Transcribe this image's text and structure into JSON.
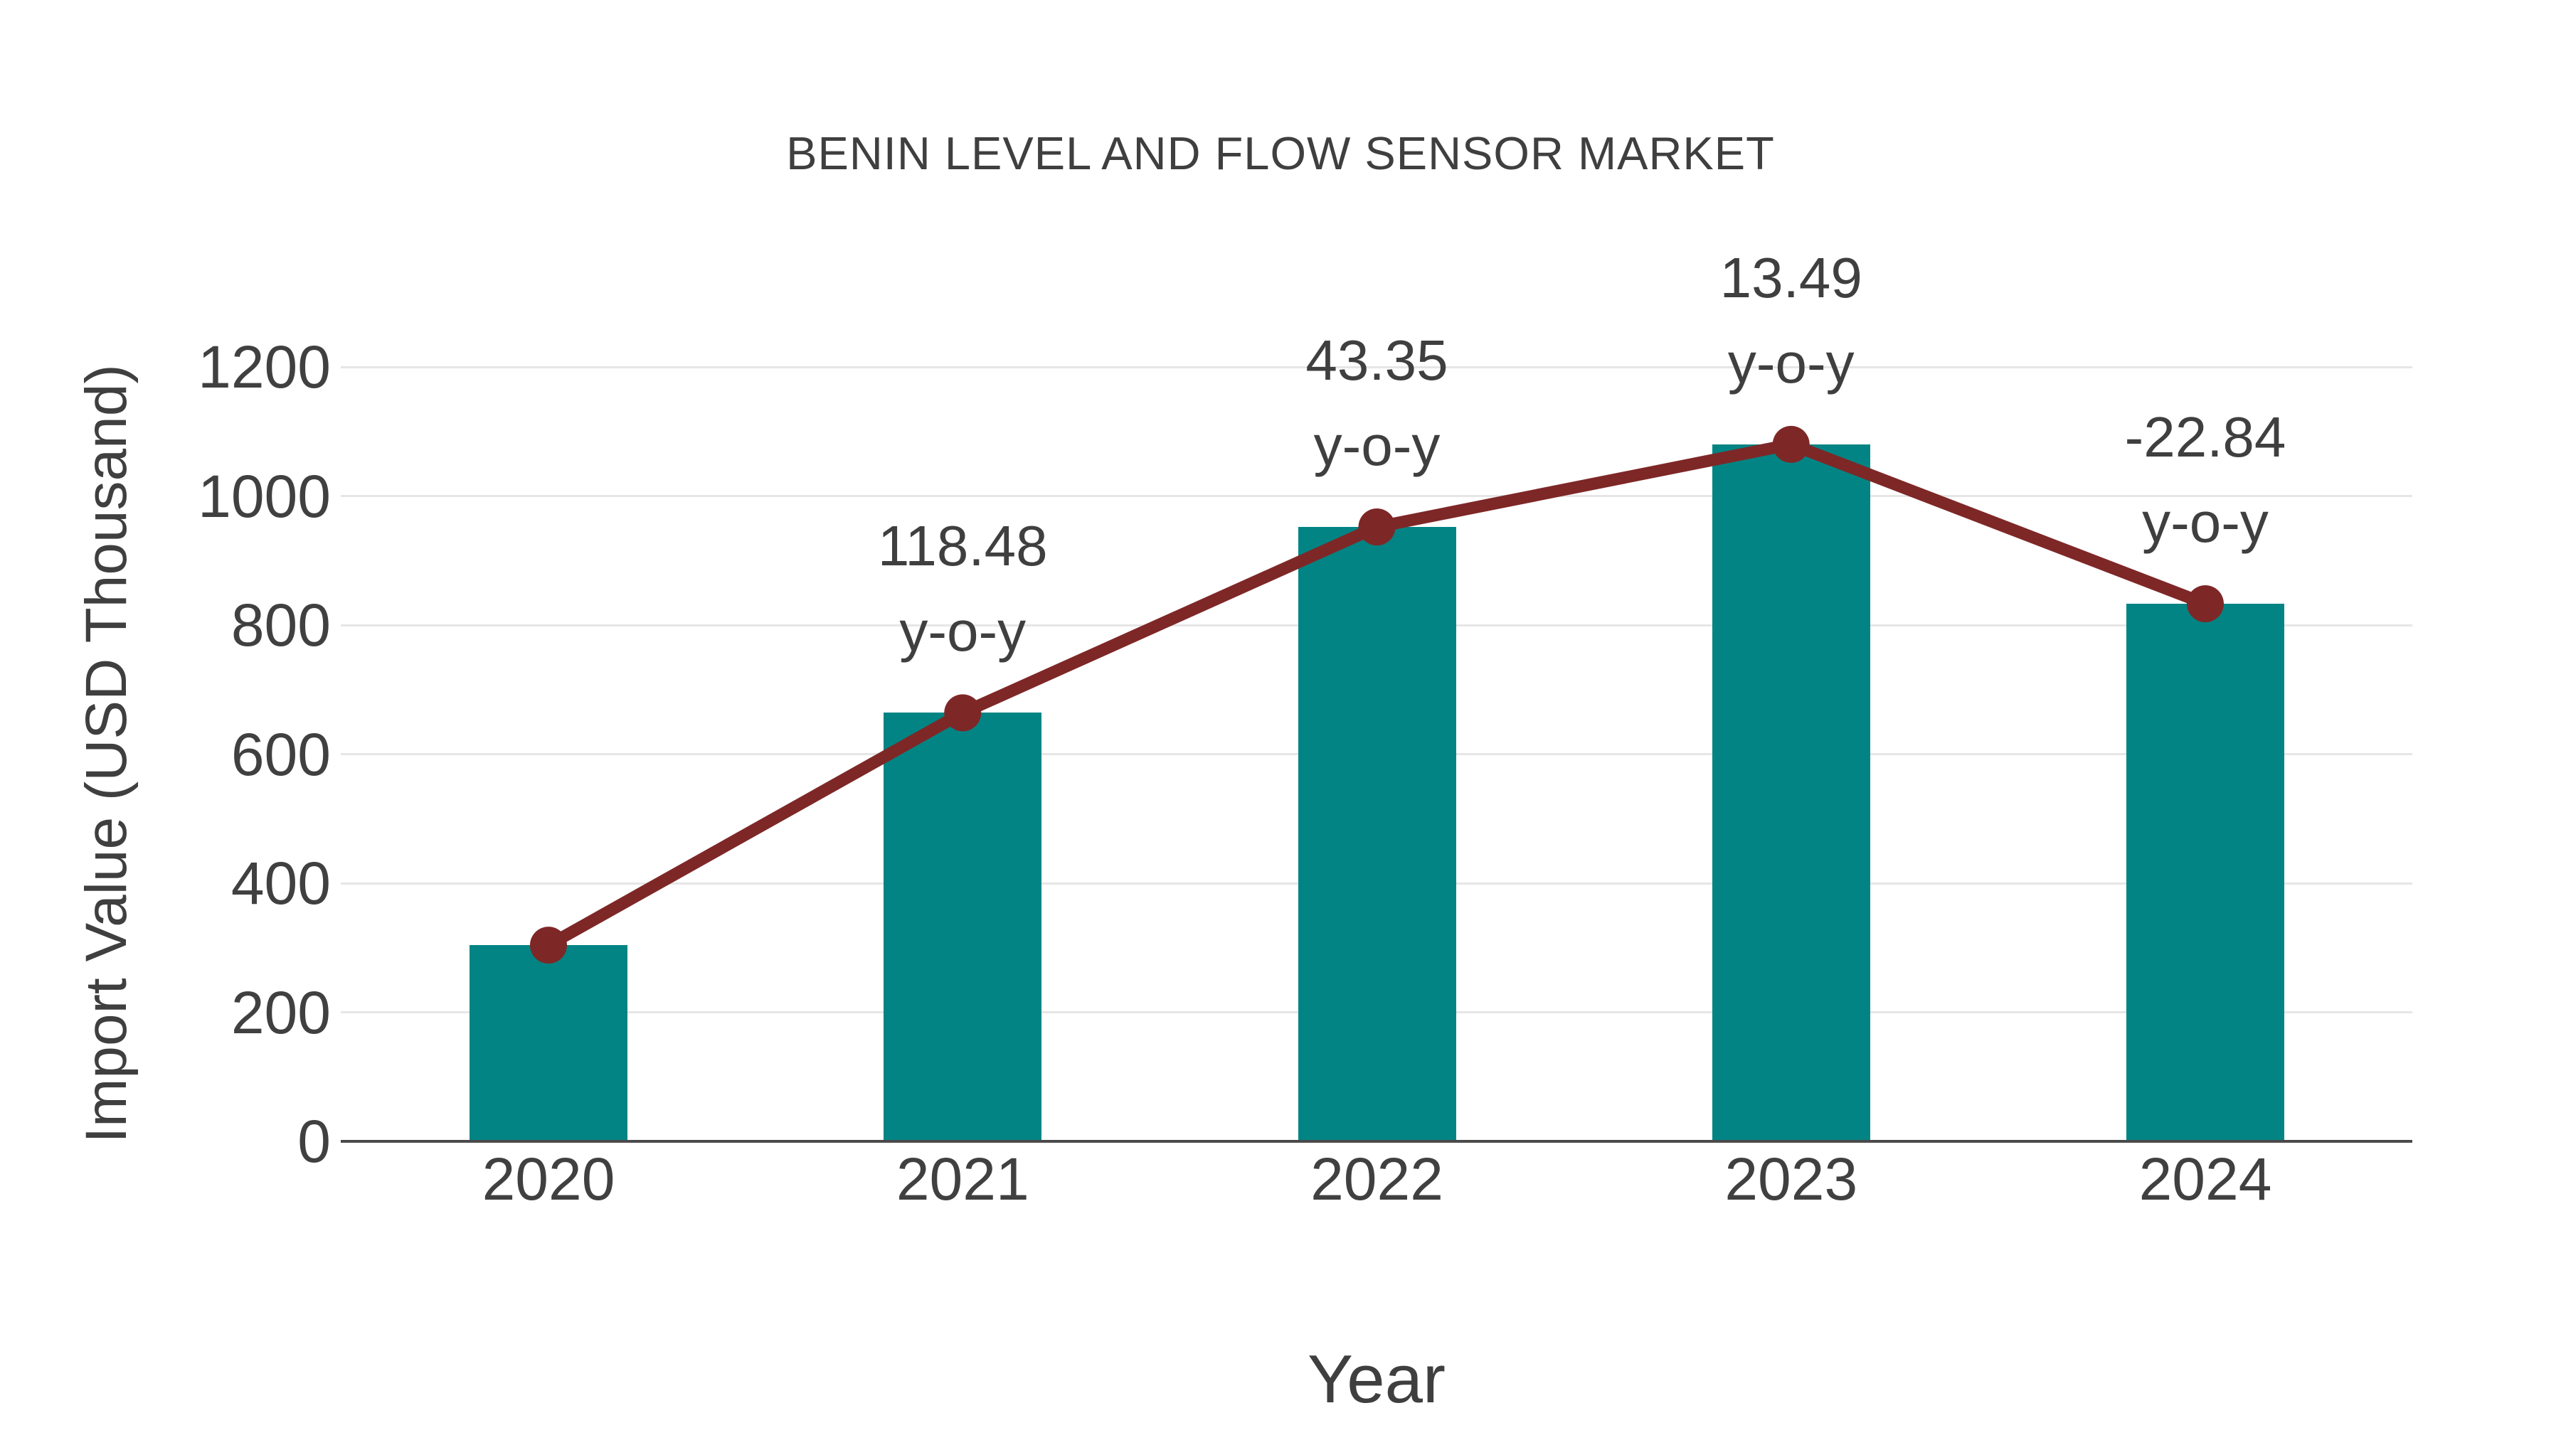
{
  "chart_data": {
    "type": "bar",
    "title": "BENIN LEVEL AND FLOW SENSOR MARKET",
    "xlabel": "Year",
    "ylabel": "Import Value (USD Thousand)",
    "categories": [
      "2020",
      "2021",
      "2022",
      "2023",
      "2024"
    ],
    "series": [
      {
        "name": "Import Value (USD Thousand)",
        "type": "bar",
        "values": [
          304,
          664,
          952,
          1080,
          833
        ]
      },
      {
        "name": "y-o-y growth",
        "type": "line",
        "anchored_values": [
          304,
          664,
          952,
          1080,
          833
        ],
        "yoy_percent": [
          null,
          118.48,
          43.35,
          13.49,
          -22.84
        ]
      }
    ],
    "point_labels": [
      null,
      "118.48",
      "43.35",
      "13.49",
      "-22.84"
    ],
    "point_label_suffix": "y-o-y",
    "ylim": [
      0,
      1200
    ],
    "yticks": [
      0,
      200,
      400,
      600,
      800,
      1000,
      1200
    ],
    "grid": true,
    "legend": "none"
  },
  "colors": {
    "bar": "#038484",
    "line": "#7e2727",
    "marker": "#7e2727",
    "text": "#3f3f3f",
    "tick_text": "#404040",
    "gridline": "#e6e6e6",
    "axis_line": "#4a4a4a",
    "background": "#ffffff"
  }
}
